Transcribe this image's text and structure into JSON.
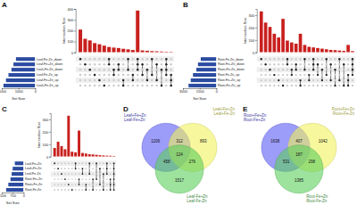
{
  "chart_data": [
    {
      "type": "upset",
      "panel": "A",
      "ylabel": "Intersection Size",
      "xlabel": "Set Size",
      "ylim": [
        0,
        400
      ],
      "yticks": [
        0,
        100,
        200,
        300,
        400
      ],
      "xlim": [
        0,
        2000
      ],
      "xticks": [
        0,
        1000,
        2000
      ],
      "sets": {
        "names": [
          "Leaf-Fe-Zn_down",
          "Leaf-Fe+Zn_down",
          "Leaf+Fe-Zn_down",
          "Leaf-Fe-Zn_up",
          "Leaf-Fe+Zn_up",
          "Leaf+Fe-Zn_up"
        ],
        "values": [
          1150,
          1300,
          1420,
          1600,
          1750,
          1900
        ],
        "color": "#2b4ba0"
      },
      "intersections": {
        "members": [
          [
            0
          ],
          [
            1
          ],
          [
            2
          ],
          [
            3
          ],
          [
            4
          ],
          [
            5
          ],
          [
            0,
            1
          ],
          [
            2,
            3
          ],
          [
            1,
            2
          ],
          [
            4,
            5
          ],
          [
            0,
            2
          ],
          [
            3,
            4
          ],
          [
            0,
            1,
            2
          ],
          [
            1,
            3
          ],
          [
            2,
            4
          ],
          [
            0,
            3
          ],
          [
            1,
            4
          ],
          [
            2,
            5
          ],
          [
            0,
            1,
            2,
            3
          ],
          [
            3,
            4,
            5
          ]
        ],
        "values": [
          210,
          125,
          110,
          85,
          75,
          62,
          50,
          44,
          40,
          33,
          28,
          22,
          385,
          18,
          15,
          12,
          10,
          8,
          6,
          5
        ],
        "color": "#c8201e"
      }
    },
    {
      "type": "upset",
      "panel": "B",
      "ylabel": "Intersection Size",
      "xlabel": "Set Size",
      "ylim": [
        0,
        350
      ],
      "yticks": [
        0,
        100,
        200,
        300
      ],
      "xlim": [
        0,
        3000
      ],
      "xticks": [
        0,
        1500,
        3000
      ],
      "sets": {
        "names": [
          "Root-Fe-Zn_down",
          "Root-Fe+Zn_down",
          "Root+Fe-Zn_down",
          "Root-Fe-Zn_up",
          "Root-Fe+Zn_up",
          "Root+Fe-Zn_up"
        ],
        "values": [
          1400,
          1650,
          1800,
          2100,
          2300,
          2500
        ],
        "color": "#2b4ba0"
      },
      "intersections": {
        "members": [
          [
            0
          ],
          [
            1
          ],
          [
            2
          ],
          [
            3
          ],
          [
            4
          ],
          [
            5
          ],
          [
            0,
            1
          ],
          [
            2,
            3
          ],
          [
            1,
            2
          ],
          [
            4,
            5
          ],
          [
            0,
            2
          ],
          [
            3,
            4
          ],
          [
            0,
            1,
            2
          ],
          [
            1,
            3
          ],
          [
            2,
            4
          ],
          [
            0,
            3
          ],
          [
            1,
            4
          ],
          [
            2,
            5
          ],
          [
            0,
            4
          ],
          [
            1,
            5
          ],
          [
            3,
            4,
            5
          ],
          [
            0,
            1,
            2,
            3
          ]
        ],
        "values": [
          330,
          240,
          205,
          150,
          120,
          270,
          95,
          80,
          70,
          150,
          60,
          45,
          40,
          35,
          30,
          25,
          20,
          18,
          15,
          12,
          60,
          10
        ],
        "color": "#c8201e"
      }
    },
    {
      "type": "upset",
      "panel": "C",
      "ylabel": "Intersection Size",
      "xlabel": "Set Size",
      "ylim": [
        0,
        350
      ],
      "yticks": [
        0,
        100,
        200,
        300
      ],
      "xlim": [
        0,
        1500
      ],
      "xticks": [
        0,
        750,
        1500
      ],
      "sets": {
        "names": [
          "Leaf-Fe+Zn",
          "Leaf+Fe-Zn",
          "Leaf-Fe-Zn",
          "Root-Fe+Zn",
          "Root+Fe-Zn",
          "Root-Fe-Zn"
        ],
        "values": [
          600,
          750,
          820,
          900,
          1050,
          1200
        ],
        "color": "#2b4ba0"
      },
      "intersections": {
        "members": [
          [
            0
          ],
          [
            1
          ],
          [
            2
          ],
          [
            3
          ],
          [
            4
          ],
          [
            5
          ],
          [
            0,
            1
          ],
          [
            3,
            4
          ],
          [
            1,
            2
          ],
          [
            4,
            5
          ],
          [
            0,
            2
          ],
          [
            3,
            5
          ],
          [
            0,
            3
          ],
          [
            1,
            4
          ],
          [
            2,
            5
          ],
          [
            0,
            1,
            2
          ],
          [
            3,
            4,
            5
          ],
          [
            0,
            1,
            2,
            3,
            4,
            5
          ]
        ],
        "values": [
          70,
          120,
          85,
          60,
          330,
          40,
          35,
          210,
          30,
          25,
          20,
          18,
          15,
          12,
          10,
          8,
          7,
          5
        ],
        "color": "#c8201e"
      }
    },
    {
      "type": "venn",
      "panel": "D",
      "sets": [
        {
          "label": [
            "Leaf+Fe+Zn",
            "Leaf-Fe+Zn"
          ],
          "color": "#5a5af5"
        },
        {
          "label": [
            "Leaf+Fe+Zn",
            "Leaf+Fe-Zn"
          ],
          "color": "#f2f25e"
        },
        {
          "label": [
            "Leaf-Fe+Zn",
            "Leaf-Fe-Zn"
          ],
          "color": "#5ccf5c"
        }
      ],
      "regions": [
        {
          "sets": [
            0
          ],
          "value": 1206
        },
        {
          "sets": [
            1
          ],
          "value": 893
        },
        {
          "sets": [
            2
          ],
          "value": 1517
        },
        {
          "sets": [
            0,
            1
          ],
          "value": 312
        },
        {
          "sets": [
            0,
            2
          ],
          "value": 458
        },
        {
          "sets": [
            1,
            2
          ],
          "value": 276
        },
        {
          "sets": [
            0,
            1,
            2
          ],
          "value": 124
        }
      ]
    },
    {
      "type": "venn",
      "panel": "E",
      "sets": [
        {
          "label": [
            "Root+Fe+Zn",
            "Root-Fe+Zn"
          ],
          "color": "#5a5af5"
        },
        {
          "label": [
            "Root+Fe+Zn",
            "Root+Fe-Zn"
          ],
          "color": "#f2f25e"
        },
        {
          "label": [
            "Root-Fe+Zn",
            "Root-Fe-Zn"
          ],
          "color": "#5ccf5c"
        }
      ],
      "regions": [
        {
          "sets": [
            0
          ],
          "value": 1638
        },
        {
          "sets": [
            1
          ],
          "value": 1042
        },
        {
          "sets": [
            2
          ],
          "value": 1385
        },
        {
          "sets": [
            0,
            1
          ],
          "value": 407
        },
        {
          "sets": [
            0,
            2
          ],
          "value": 531
        },
        {
          "sets": [
            1,
            2
          ],
          "value": 298
        },
        {
          "sets": [
            0,
            1,
            2
          ],
          "value": 187
        }
      ]
    }
  ]
}
